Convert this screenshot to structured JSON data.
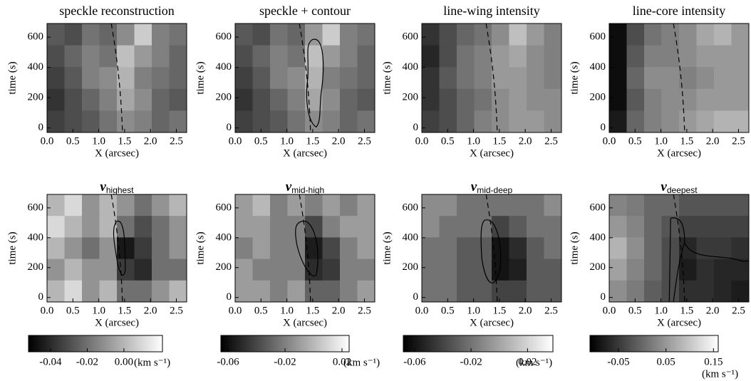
{
  "chart_data": [
    {
      "type": "heatmap",
      "title": "speckle reconstruction",
      "x_label": "X (arcsec)",
      "y_label": "time (s)",
      "xlim": [
        0,
        2.7
      ],
      "ylim": [
        -30,
        690
      ],
      "xticks": [
        {
          "value": 0,
          "label": "0.0"
        },
        0.5,
        {
          "value": 1,
          "label": "1.0"
        },
        1.5,
        {
          "value": 2,
          "label": "2.0"
        },
        2.5
      ],
      "yticks": [
        0,
        200,
        400,
        600
      ],
      "z": [
        [
          0.35,
          0.3,
          0.45,
          0.4,
          0.55,
          0.8,
          0.5,
          0.45
        ],
        [
          0.3,
          0.4,
          0.5,
          0.45,
          0.75,
          0.6,
          0.5,
          0.4
        ],
        [
          0.25,
          0.35,
          0.5,
          0.55,
          0.7,
          0.5,
          0.45,
          0.4
        ],
        [
          0.2,
          0.3,
          0.4,
          0.5,
          0.65,
          0.55,
          0.4,
          0.35
        ],
        [
          0.25,
          0.3,
          0.35,
          0.45,
          0.55,
          0.5,
          0.4,
          0.45
        ]
      ]
    },
    {
      "type": "heatmap",
      "title": "speckle + contour",
      "x_label": "X (arcsec)",
      "y_label": "time (s)",
      "xlim": [
        0,
        2.7
      ],
      "ylim": [
        -30,
        690
      ],
      "xticks": [
        {
          "value": 0,
          "label": "0.0"
        },
        0.5,
        {
          "value": 1,
          "label": "1.0"
        },
        1.5,
        {
          "value": 2,
          "label": "2.0"
        },
        2.5
      ],
      "yticks": [
        0,
        200,
        400,
        600
      ],
      "z": [
        [
          0.35,
          0.3,
          0.45,
          0.4,
          0.6,
          0.8,
          0.5,
          0.45
        ],
        [
          0.3,
          0.4,
          0.5,
          0.45,
          0.75,
          0.6,
          0.5,
          0.4
        ],
        [
          0.25,
          0.35,
          0.5,
          0.55,
          0.7,
          0.5,
          0.45,
          0.4
        ],
        [
          0.2,
          0.3,
          0.4,
          0.5,
          0.65,
          0.55,
          0.4,
          0.35
        ],
        [
          0.25,
          0.3,
          0.35,
          0.45,
          0.55,
          0.5,
          0.4,
          0.45
        ]
      ]
    },
    {
      "type": "heatmap",
      "title": "line-wing intensity",
      "x_label": "X (arcsec)",
      "y_label": "time (s)",
      "xlim": [
        0,
        2.7
      ],
      "ylim": [
        -30,
        690
      ],
      "xticks": [
        {
          "value": 0,
          "label": "0.0"
        },
        0.5,
        {
          "value": 1,
          "label": "1.0"
        },
        1.5,
        {
          "value": 2,
          "label": "2.0"
        },
        2.5
      ],
      "yticks": [
        0,
        200,
        400,
        600
      ],
      "z": [
        [
          0.2,
          0.3,
          0.4,
          0.45,
          0.55,
          0.75,
          0.6,
          0.5
        ],
        [
          0.15,
          0.3,
          0.45,
          0.5,
          0.6,
          0.65,
          0.55,
          0.5
        ],
        [
          0.2,
          0.35,
          0.45,
          0.5,
          0.6,
          0.6,
          0.55,
          0.5
        ],
        [
          0.2,
          0.3,
          0.4,
          0.45,
          0.55,
          0.6,
          0.55,
          0.55
        ],
        [
          0.25,
          0.3,
          0.4,
          0.5,
          0.55,
          0.6,
          0.6,
          0.55
        ]
      ]
    },
    {
      "type": "heatmap",
      "title": "line-core intensity",
      "x_label": "X (arcsec)",
      "y_label": "time (s)",
      "xlim": [
        0,
        2.7
      ],
      "ylim": [
        -30,
        690
      ],
      "xticks": [
        {
          "value": 0,
          "label": "0.0"
        },
        0.5,
        {
          "value": 1,
          "label": "1.0"
        },
        1.5,
        {
          "value": 2,
          "label": "2.0"
        },
        2.5
      ],
      "yticks": [
        0,
        200,
        400,
        600
      ],
      "z": [
        [
          0.05,
          0.3,
          0.45,
          0.5,
          0.55,
          0.65,
          0.7,
          0.6
        ],
        [
          0.05,
          0.35,
          0.5,
          0.5,
          0.55,
          0.6,
          0.6,
          0.6
        ],
        [
          0.05,
          0.4,
          0.55,
          0.55,
          0.5,
          0.55,
          0.6,
          0.6
        ],
        [
          0.05,
          0.35,
          0.5,
          0.55,
          0.55,
          0.6,
          0.6,
          0.6
        ],
        [
          0.1,
          0.4,
          0.5,
          0.55,
          0.6,
          0.65,
          0.7,
          0.7
        ]
      ]
    },
    {
      "type": "heatmap",
      "title": {
        "symbol": "v",
        "subscript": "highest"
      },
      "x_label": "X (arcsec)",
      "y_label": "time (s)",
      "xlim": [
        0,
        2.7
      ],
      "ylim": [
        -30,
        690
      ],
      "xticks": [
        {
          "value": 0,
          "label": "0.0"
        },
        0.5,
        {
          "value": 1,
          "label": "1.0"
        },
        1.5,
        {
          "value": 2,
          "label": "2.0"
        },
        2.5
      ],
      "yticks": [
        0,
        200,
        400,
        600
      ],
      "colorbar": {
        "clim": [
          -0.052,
          0.021
        ],
        "ticks": [
          -0.04,
          -0.02,
          {
            "value": 0,
            "label": "0.00"
          }
        ],
        "label": "(km s⁻¹)"
      },
      "z": [
        [
          0.0,
          0.01,
          -0.01,
          0.0,
          -0.01,
          -0.02,
          -0.01,
          0.0
        ],
        [
          0.01,
          0.0,
          -0.01,
          0.0,
          -0.02,
          -0.03,
          -0.02,
          -0.01
        ],
        [
          0.0,
          -0.01,
          -0.02,
          -0.01,
          -0.045,
          -0.035,
          -0.02,
          -0.01
        ],
        [
          -0.01,
          0.0,
          -0.01,
          -0.01,
          -0.035,
          -0.04,
          -0.02,
          -0.02
        ],
        [
          0.0,
          0.01,
          -0.01,
          0.0,
          -0.02,
          -0.02,
          -0.01,
          0.0
        ]
      ]
    },
    {
      "type": "heatmap",
      "title": {
        "symbol": "v",
        "subscript": "mid-high"
      },
      "x_label": "X (arcsec)",
      "y_label": "time (s)",
      "xlim": [
        0,
        2.7
      ],
      "ylim": [
        -30,
        690
      ],
      "xticks": [
        {
          "value": 0,
          "label": "0.0"
        },
        0.5,
        {
          "value": 1,
          "label": "1.0"
        },
        1.5,
        {
          "value": 2,
          "label": "2.0"
        },
        2.5
      ],
      "yticks": [
        0,
        200,
        400,
        600
      ],
      "colorbar": {
        "clim": [
          -0.065,
          0.025
        ],
        "ticks": [
          -0.06,
          -0.02,
          0.02
        ],
        "label": "(km s⁻¹)"
      },
      "z": [
        [
          -0.01,
          0.0,
          -0.02,
          -0.01,
          -0.02,
          -0.01,
          -0.02,
          -0.01
        ],
        [
          -0.01,
          -0.01,
          -0.02,
          -0.02,
          -0.04,
          -0.02,
          -0.01,
          -0.01
        ],
        [
          -0.02,
          -0.01,
          -0.02,
          -0.02,
          -0.055,
          -0.04,
          -0.02,
          -0.01
        ],
        [
          -0.01,
          -0.02,
          -0.02,
          -0.02,
          -0.05,
          -0.045,
          -0.02,
          -0.02
        ],
        [
          -0.01,
          -0.01,
          -0.02,
          -0.01,
          -0.03,
          -0.03,
          -0.02,
          -0.01
        ]
      ]
    },
    {
      "type": "heatmap",
      "title": {
        "symbol": "v",
        "subscript": "mid-deep"
      },
      "x_label": "X (arcsec)",
      "y_label": "time (s)",
      "xlim": [
        0,
        2.7
      ],
      "ylim": [
        -30,
        690
      ],
      "xticks": [
        {
          "value": 0,
          "label": "0.0"
        },
        0.5,
        {
          "value": 1,
          "label": "1.0"
        },
        1.5,
        {
          "value": 2,
          "label": "2.0"
        },
        2.5
      ],
      "yticks": [
        0,
        200,
        400,
        600
      ],
      "colorbar": {
        "clim": [
          -0.068,
          0.038
        ],
        "ticks": [
          -0.06,
          -0.02,
          0.02
        ],
        "label": "(km s⁻¹)"
      },
      "z": [
        [
          -0.01,
          -0.01,
          -0.02,
          -0.02,
          -0.02,
          -0.02,
          -0.02,
          -0.01
        ],
        [
          -0.01,
          -0.02,
          -0.02,
          -0.02,
          -0.04,
          -0.03,
          -0.02,
          -0.02
        ],
        [
          -0.02,
          -0.02,
          -0.03,
          -0.03,
          -0.06,
          -0.05,
          -0.03,
          -0.02
        ],
        [
          -0.02,
          -0.02,
          -0.03,
          -0.03,
          -0.06,
          -0.055,
          -0.03,
          -0.03
        ],
        [
          -0.02,
          -0.02,
          -0.03,
          -0.03,
          -0.04,
          -0.04,
          -0.03,
          -0.03
        ]
      ]
    },
    {
      "type": "heatmap",
      "title": {
        "symbol": "v",
        "subscript": "deepest"
      },
      "x_label": "X (arcsec)",
      "y_label": "time (s)",
      "xlim": [
        0,
        2.7
      ],
      "ylim": [
        -30,
        690
      ],
      "xticks": [
        {
          "value": 0,
          "label": "0.0"
        },
        0.5,
        {
          "value": 1,
          "label": "1.0"
        },
        1.5,
        {
          "value": 2,
          "label": "2.0"
        },
        2.5
      ],
      "yticks": [
        0,
        200,
        400,
        600
      ],
      "colorbar": {
        "clim": [
          -0.11,
          0.16
        ],
        "ticks": [
          -0.05,
          0.05,
          0.15
        ],
        "label": "(km s⁻¹)"
      },
      "z": [
        [
          0.03,
          0.02,
          0.0,
          0.0,
          -0.02,
          -0.02,
          -0.02,
          -0.02
        ],
        [
          0.05,
          0.03,
          0.0,
          -0.02,
          -0.04,
          -0.04,
          -0.04,
          -0.04
        ],
        [
          0.08,
          0.04,
          0.0,
          -0.03,
          -0.07,
          -0.05,
          -0.05,
          -0.06
        ],
        [
          0.06,
          0.03,
          0.0,
          -0.03,
          -0.08,
          -0.06,
          -0.07,
          -0.07
        ],
        [
          0.04,
          0.02,
          -0.01,
          -0.03,
          -0.06,
          -0.06,
          -0.07,
          -0.08
        ]
      ]
    }
  ]
}
